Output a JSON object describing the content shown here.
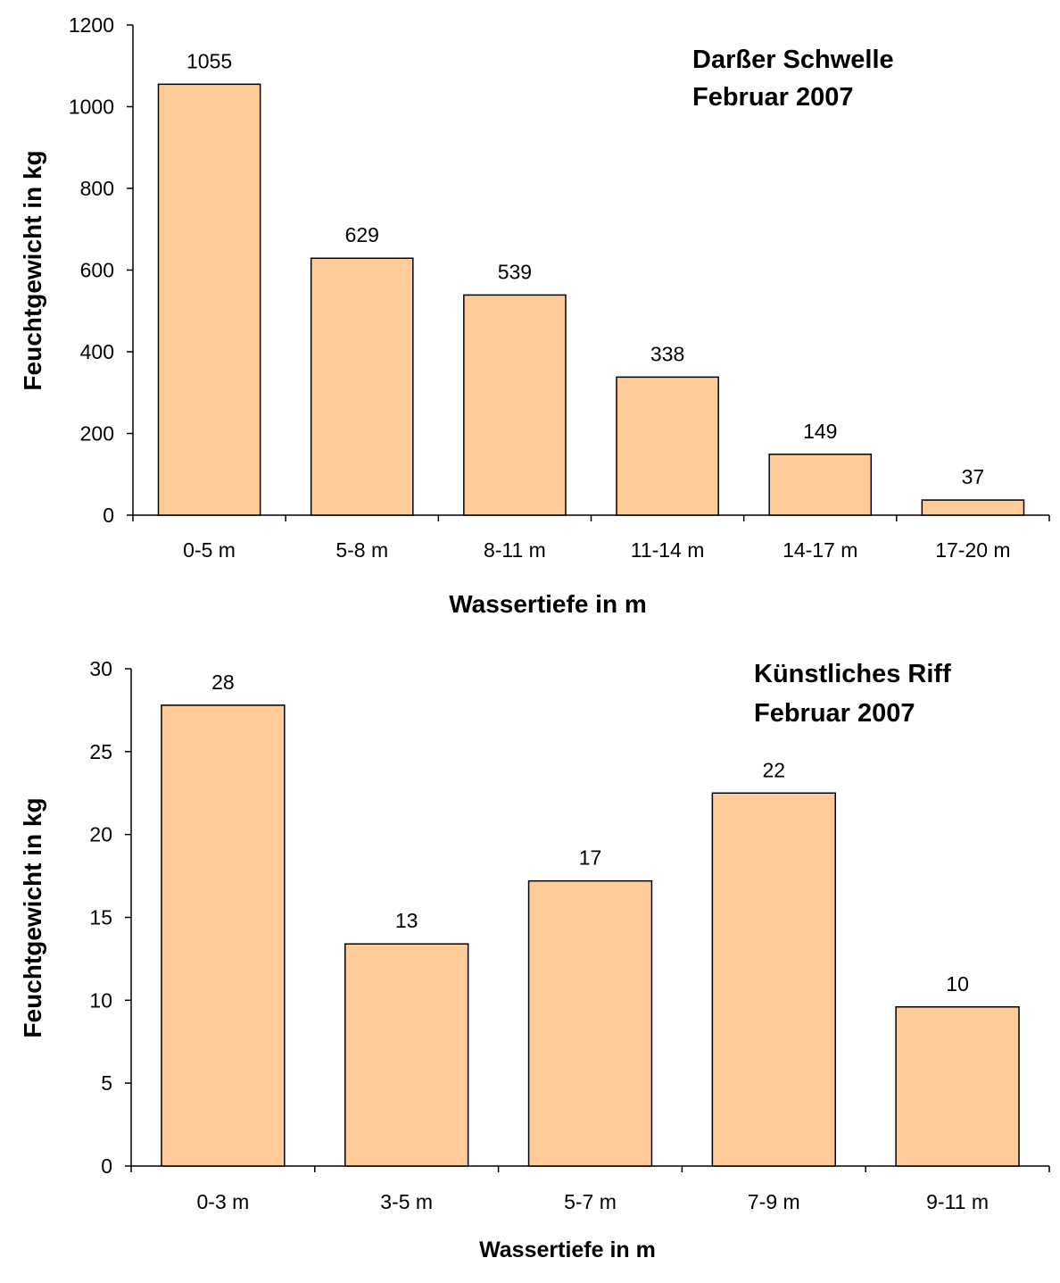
{
  "chart_data": [
    {
      "type": "bar",
      "title_lines": [
        "Darßer Schwelle",
        "Februar 2007"
      ],
      "xlabel": "Wassertiefe in m",
      "ylabel": "Feuchtgewicht in kg",
      "categories": [
        "0-5 m",
        "5-8 m",
        "8-11 m",
        "11-14 m",
        "14-17 m",
        "17-20 m"
      ],
      "values": [
        1055,
        629,
        539,
        338,
        149,
        37
      ],
      "data_labels": [
        "1055",
        "629",
        "539",
        "338",
        "149",
        "37"
      ],
      "ylim": [
        0,
        1200
      ],
      "yticks": [
        0,
        200,
        400,
        600,
        800,
        1000,
        1200
      ],
      "grid": false,
      "bar_color": "#FFCC99"
    },
    {
      "type": "bar",
      "title_lines": [
        "Künstliches Riff",
        "Februar 2007"
      ],
      "xlabel": "Wassertiefe in m",
      "ylabel": "Feuchtgewicht in kg",
      "categories": [
        "0-3 m",
        "3-5 m",
        "5-7 m",
        "7-9 m",
        "9-11 m"
      ],
      "values": [
        27.8,
        13.4,
        17.2,
        22.5,
        9.6
      ],
      "data_labels": [
        "28",
        "13",
        "17",
        "22",
        "10"
      ],
      "ylim": [
        0,
        30
      ],
      "yticks": [
        0,
        5,
        10,
        15,
        20,
        25,
        30
      ],
      "grid": false,
      "bar_color": "#FFCC99"
    }
  ]
}
